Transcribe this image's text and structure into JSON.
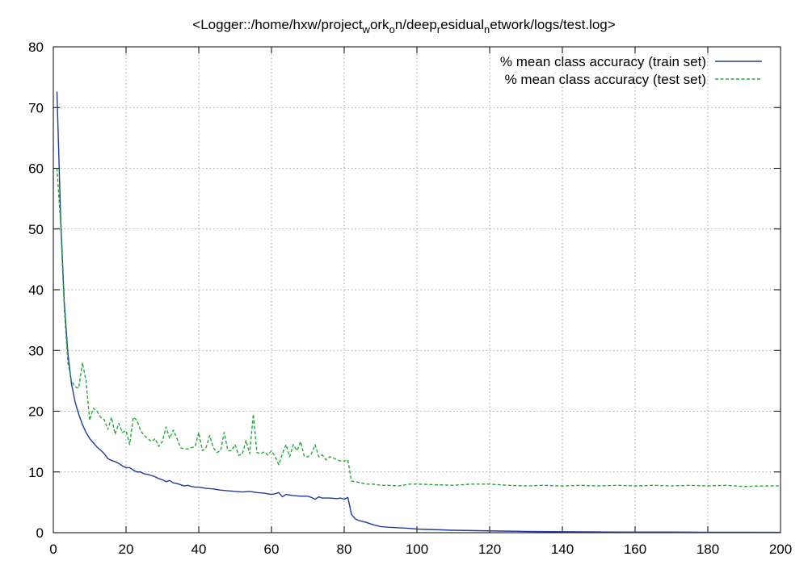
{
  "chart_data": {
    "type": "line",
    "title": {
      "prefix": "<Logger::/home/hxw/project",
      "segments": [
        {
          "sub": "w",
          "text": "ork"
        },
        {
          "sub": "o",
          "text": "n/deep"
        },
        {
          "sub": "r",
          "text": "esidual"
        },
        {
          "sub": "n",
          "text": "etwork/logs/test.log>"
        }
      ]
    },
    "xlabel": "",
    "ylabel": "",
    "xlim": [
      0,
      200
    ],
    "ylim": [
      0,
      80
    ],
    "xticks": [
      0,
      20,
      40,
      60,
      80,
      100,
      120,
      140,
      160,
      180,
      200
    ],
    "yticks": [
      0,
      10,
      20,
      30,
      40,
      50,
      60,
      70,
      80
    ],
    "grid": true,
    "legend": "top-right",
    "series": [
      {
        "name": "% mean class accuracy (train set)",
        "color": "#1f3c99",
        "style": "solid",
        "points": [
          [
            1,
            72.6
          ],
          [
            2,
            52
          ],
          [
            3,
            38
          ],
          [
            4,
            29.5
          ],
          [
            5,
            24.5
          ],
          [
            6,
            21.5
          ],
          [
            7,
            19.5
          ],
          [
            8,
            17.8
          ],
          [
            9,
            16.5
          ],
          [
            10,
            15.5
          ],
          [
            11,
            14.8
          ],
          [
            12,
            14.1
          ],
          [
            13,
            13.6
          ],
          [
            14,
            13
          ],
          [
            15,
            12.2
          ],
          [
            16,
            11.9
          ],
          [
            17,
            11.7
          ],
          [
            18,
            11.4
          ],
          [
            19,
            11
          ],
          [
            20,
            10.7
          ],
          [
            21,
            10.7
          ],
          [
            22,
            10.3
          ],
          [
            23,
            10
          ],
          [
            24,
            10
          ],
          [
            25,
            9.7
          ],
          [
            26,
            9.6
          ],
          [
            27,
            9.4
          ],
          [
            28,
            9.2
          ],
          [
            29,
            8.9
          ],
          [
            30,
            8.7
          ],
          [
            31,
            8.4
          ],
          [
            32,
            8.6
          ],
          [
            33,
            8.2
          ],
          [
            34,
            8.1
          ],
          [
            35,
            7.9
          ],
          [
            36,
            7.7
          ],
          [
            37,
            7.8
          ],
          [
            38,
            7.6
          ],
          [
            39,
            7.5
          ],
          [
            40,
            7.5
          ],
          [
            42,
            7.3
          ],
          [
            44,
            7.2
          ],
          [
            46,
            7
          ],
          [
            48,
            6.9
          ],
          [
            50,
            6.8
          ],
          [
            52,
            6.7
          ],
          [
            54,
            6.8
          ],
          [
            56,
            6.6
          ],
          [
            58,
            6.5
          ],
          [
            60,
            6.3
          ],
          [
            61,
            6.4
          ],
          [
            62,
            6.6
          ],
          [
            63,
            5.9
          ],
          [
            64,
            6.3
          ],
          [
            66,
            6.1
          ],
          [
            68,
            6
          ],
          [
            70,
            6
          ],
          [
            71,
            5.8
          ],
          [
            72,
            5.5
          ],
          [
            73,
            5.9
          ],
          [
            74,
            5.7
          ],
          [
            76,
            5.7
          ],
          [
            78,
            5.6
          ],
          [
            79,
            5.7
          ],
          [
            80,
            5.5
          ],
          [
            81,
            5.8
          ],
          [
            82,
            3
          ],
          [
            83,
            2.3
          ],
          [
            84,
            2
          ],
          [
            86,
            1.7
          ],
          [
            88,
            1.3
          ],
          [
            90,
            1
          ],
          [
            92,
            0.9
          ],
          [
            95,
            0.8
          ],
          [
            98,
            0.7
          ],
          [
            100,
            0.6
          ],
          [
            105,
            0.5
          ],
          [
            110,
            0.4
          ],
          [
            115,
            0.35
          ],
          [
            120,
            0.3
          ],
          [
            125,
            0.25
          ],
          [
            130,
            0.2
          ],
          [
            140,
            0.15
          ],
          [
            150,
            0.12
          ],
          [
            160,
            0.1
          ],
          [
            170,
            0.1
          ],
          [
            180,
            0.08
          ],
          [
            190,
            0.07
          ],
          [
            200,
            0.06
          ]
        ]
      },
      {
        "name": "% mean class accuracy (test set)",
        "color": "#22aa33",
        "style": "dashed",
        "points": [
          [
            1,
            60
          ],
          [
            2,
            51
          ],
          [
            3,
            37
          ],
          [
            4,
            28
          ],
          [
            5,
            25
          ],
          [
            6,
            24
          ],
          [
            7,
            23.8
          ],
          [
            8,
            28
          ],
          [
            9,
            25
          ],
          [
            10,
            18.5
          ],
          [
            11,
            20.5
          ],
          [
            12,
            20
          ],
          [
            13,
            19
          ],
          [
            14,
            18.6
          ],
          [
            15,
            17
          ],
          [
            16,
            19
          ],
          [
            17,
            16.2
          ],
          [
            18,
            18
          ],
          [
            19,
            16.5
          ],
          [
            20,
            16.8
          ],
          [
            21,
            14.5
          ],
          [
            22,
            19
          ],
          [
            23,
            18.5
          ],
          [
            24,
            16.8
          ],
          [
            25,
            16
          ],
          [
            26,
            15.5
          ],
          [
            27,
            15
          ],
          [
            28,
            15.5
          ],
          [
            29,
            14.2
          ],
          [
            30,
            15
          ],
          [
            31,
            17.4
          ],
          [
            32,
            15.5
          ],
          [
            33,
            16.9
          ],
          [
            34,
            15.5
          ],
          [
            35,
            14
          ],
          [
            36,
            13.8
          ],
          [
            37,
            13.8
          ],
          [
            38,
            14
          ],
          [
            39,
            14.2
          ],
          [
            40,
            16.5
          ],
          [
            41,
            13.5
          ],
          [
            42,
            14
          ],
          [
            43,
            16
          ],
          [
            44,
            14
          ],
          [
            45,
            13.2
          ],
          [
            46,
            13.5
          ],
          [
            47,
            16.5
          ],
          [
            48,
            13.5
          ],
          [
            49,
            13.5
          ],
          [
            50,
            14.5
          ],
          [
            51,
            12.7
          ],
          [
            52,
            13
          ],
          [
            53,
            15.2
          ],
          [
            54,
            13
          ],
          [
            55,
            19.5
          ],
          [
            56,
            13.2
          ],
          [
            57,
            13
          ],
          [
            58,
            13.3
          ],
          [
            59,
            12.8
          ],
          [
            60,
            13.5
          ],
          [
            61,
            12.5
          ],
          [
            62,
            11.2
          ],
          [
            63,
            13
          ],
          [
            64,
            14.5
          ],
          [
            65,
            12.5
          ],
          [
            66,
            14.5
          ],
          [
            67,
            13.5
          ],
          [
            68,
            15
          ],
          [
            69,
            12.6
          ],
          [
            70,
            12.5
          ],
          [
            71,
            13
          ],
          [
            72,
            14.5
          ],
          [
            73,
            12.5
          ],
          [
            74,
            12.8
          ],
          [
            75,
            12
          ],
          [
            76,
            12.5
          ],
          [
            77,
            12.3
          ],
          [
            78,
            12
          ],
          [
            79,
            11.8
          ],
          [
            80,
            11.8
          ],
          [
            81,
            12
          ],
          [
            82,
            8.5
          ],
          [
            84,
            8.3
          ],
          [
            86,
            8
          ],
          [
            88,
            8
          ],
          [
            90,
            7.8
          ],
          [
            92,
            7.8
          ],
          [
            95,
            7.7
          ],
          [
            98,
            8
          ],
          [
            100,
            8
          ],
          [
            105,
            7.9
          ],
          [
            110,
            7.8
          ],
          [
            115,
            8
          ],
          [
            120,
            8
          ],
          [
            125,
            7.8
          ],
          [
            130,
            7.7
          ],
          [
            135,
            7.8
          ],
          [
            140,
            7.7
          ],
          [
            145,
            7.8
          ],
          [
            150,
            7.7
          ],
          [
            155,
            7.8
          ],
          [
            160,
            7.7
          ],
          [
            165,
            7.8
          ],
          [
            170,
            7.7
          ],
          [
            175,
            7.8
          ],
          [
            180,
            7.7
          ],
          [
            185,
            7.8
          ],
          [
            190,
            7.6
          ],
          [
            195,
            7.7
          ],
          [
            200,
            7.7
          ]
        ]
      }
    ]
  }
}
